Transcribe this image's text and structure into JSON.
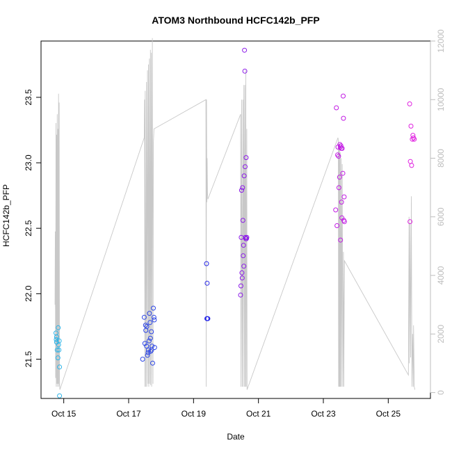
{
  "chart_data": {
    "type": "scatter",
    "title": "ATOM3 Northbound HCFC142b_PFP",
    "xlabel": "Date",
    "ylabel": "HCFC142b_PFP",
    "x_ticks": [
      "Oct 15",
      "Oct 17",
      "Oct 19",
      "Oct 21",
      "Oct 23",
      "Oct 25"
    ],
    "x_tick_days": [
      15,
      17,
      19,
      21,
      23,
      25
    ],
    "xlim": [
      14.3,
      26.3
    ],
    "ylim": [
      21.2,
      23.93
    ],
    "y_ticks": [
      "21.5",
      "22.0",
      "22.5",
      "23.0",
      "23.5"
    ],
    "y_tick_values": [
      21.5,
      22.0,
      22.5,
      23.0,
      23.5
    ],
    "y2lim": [
      -200,
      12000
    ],
    "y2_ticks": [
      "0",
      "2000",
      "4000",
      "6000",
      "8000",
      "10000",
      "12000"
    ],
    "y2_tick_values": [
      0,
      2000,
      4000,
      6000,
      8000,
      10000,
      12000
    ],
    "grid": false,
    "colors": {
      "points_start": "#29b3e8",
      "points_mid": "#2233ee",
      "points_late": "#9a16e6",
      "points_end": "#e020e0",
      "altitude_line": "#c8c8c8",
      "right_axis": "#bdbdbd"
    },
    "series": [
      {
        "type": "scatter",
        "color": "#29b3e8",
        "x": [
          14.76,
          14.77,
          14.78,
          14.78,
          14.8,
          14.82,
          14.83,
          14.84,
          14.85,
          14.86,
          14.87,
          14.87
        ],
        "y": [
          21.7,
          21.65,
          21.67,
          21.63,
          21.57,
          21.51,
          21.74,
          21.61,
          21.57,
          21.64,
          21.44,
          21.22
        ]
      },
      {
        "type": "scatter",
        "color": "#2d46e6",
        "x": [
          17.43,
          17.48,
          17.5,
          17.52,
          17.53,
          17.55,
          17.56,
          17.58,
          17.6,
          17.61,
          17.63,
          17.64,
          17.66,
          17.67,
          17.68,
          17.7,
          17.71,
          17.72,
          17.74,
          17.76,
          17.78,
          17.79,
          17.8
        ],
        "y": [
          21.5,
          21.82,
          21.62,
          21.76,
          21.72,
          21.6,
          21.75,
          21.53,
          21.55,
          21.57,
          21.64,
          21.85,
          21.78,
          21.66,
          21.56,
          21.71,
          21.57,
          21.6,
          21.47,
          21.89,
          21.82,
          21.8,
          21.59
        ]
      },
      {
        "type": "scatter",
        "color": "#2a2ae8",
        "x": [
          19.4,
          19.41,
          19.42,
          19.42,
          19.43,
          19.44
        ],
        "y": [
          22.23,
          21.81,
          22.08,
          21.81,
          21.81,
          21.81
        ]
      },
      {
        "type": "scatter",
        "color": "#8a18e8",
        "x": [
          20.45,
          20.46,
          20.47,
          20.48,
          20.49,
          20.5,
          20.51,
          20.52,
          20.53,
          20.54,
          20.55,
          20.56,
          20.57,
          20.58,
          20.59,
          20.6,
          20.61,
          20.62,
          20.63,
          20.64
        ],
        "y": [
          21.99,
          22.06,
          22.43,
          22.79,
          22.16,
          22.12,
          22.81,
          22.56,
          22.29,
          22.37,
          22.21,
          22.9,
          23.86,
          23.7,
          22.97,
          22.43,
          22.42,
          23.04,
          22.42,
          22.43
        ]
      },
      {
        "type": "scatter",
        "color": "#c21be4",
        "x": [
          23.38,
          23.4,
          23.42,
          23.44,
          23.45,
          23.47,
          23.48,
          23.5,
          23.51,
          23.52,
          23.53,
          23.54,
          23.55,
          23.56,
          23.57,
          23.58,
          23.6,
          23.61,
          23.62,
          23.63,
          23.64,
          23.65
        ],
        "y": [
          22.64,
          23.42,
          22.52,
          23.06,
          23.12,
          23.05,
          22.81,
          22.89,
          23.14,
          23.12,
          22.41,
          23.13,
          23.11,
          22.7,
          22.58,
          23.11,
          22.92,
          23.51,
          23.34,
          22.56,
          22.74,
          22.55
        ]
      },
      {
        "type": "scatter",
        "color": "#e020e0",
        "x": [
          25.66,
          25.67,
          25.68,
          25.7,
          25.72,
          25.74,
          25.76,
          25.78,
          25.8
        ],
        "y": [
          23.45,
          22.55,
          23.01,
          23.28,
          22.98,
          23.18,
          23.21,
          23.19,
          23.18
        ]
      },
      {
        "type": "line",
        "axis": "right",
        "color": "#c8c8c8",
        "x": [
          14.73,
          14.74,
          14.75,
          14.76,
          14.77,
          14.78,
          14.79,
          14.8,
          14.81,
          14.82,
          14.83,
          14.84,
          14.85,
          14.86,
          14.87,
          14.88,
          17.48,
          17.49,
          17.5,
          17.51,
          17.53,
          17.55,
          17.56,
          17.58,
          17.6,
          17.61,
          17.62,
          17.64,
          17.65,
          17.67,
          17.68,
          17.7,
          17.71,
          17.73,
          17.75,
          17.76,
          17.78,
          19.38,
          19.39,
          19.4,
          19.41,
          19.42,
          19.43,
          19.44,
          20.45,
          20.46,
          20.48,
          20.5,
          20.52,
          20.53,
          20.55,
          20.57,
          20.58,
          20.6,
          20.61,
          20.62,
          20.64,
          20.65,
          23.45,
          23.46,
          23.47,
          23.48,
          23.49,
          23.5,
          23.51,
          23.52,
          23.53,
          23.55,
          23.56,
          23.58,
          23.6,
          23.62,
          23.63,
          23.65,
          25.62,
          25.64,
          25.65,
          25.67,
          25.69,
          25.71,
          25.73,
          25.75,
          25.77,
          25.78,
          25.8,
          25.82
        ],
        "y": [
          3000,
          5500,
          500,
          9200,
          200,
          8800,
          300,
          9500,
          200,
          9000,
          300,
          10200,
          200,
          9900,
          400,
          100,
          8700,
          10000,
          200,
          10300,
          200,
          10600,
          200,
          11000,
          300,
          11200,
          200,
          11400,
          300,
          11700,
          250,
          11600,
          200,
          12100,
          300,
          8500,
          9000,
          10000,
          200,
          10000,
          6500,
          8000,
          6800,
          6600,
          9500,
          200,
          10000,
          200,
          10000,
          200,
          10500,
          200,
          10500,
          200,
          11000,
          200,
          9000,
          100,
          8700,
          8600,
          200,
          8500,
          200,
          8300,
          200,
          8200,
          200,
          8000,
          200,
          7800,
          200,
          4800,
          200,
          4500,
          600,
          6000,
          1000,
          5800,
          1200,
          6700,
          200,
          2000,
          200,
          2300,
          200,
          100
        ]
      }
    ]
  }
}
